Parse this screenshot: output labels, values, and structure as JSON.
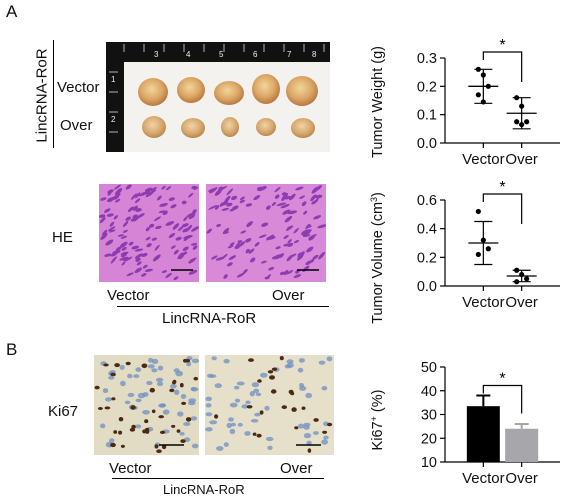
{
  "panels": {
    "a": "A",
    "b": "B"
  },
  "photo": {
    "group_label": "LincRNA-RoR",
    "row_labels": [
      "Vector",
      "Over"
    ],
    "ruler_side": [
      "1",
      "2"
    ],
    "ruler_top": [
      "3",
      "4",
      "5",
      "6",
      "7",
      "8"
    ]
  },
  "he": {
    "label": "HE",
    "x_labels": [
      "Vector",
      "Over"
    ],
    "group_label": "LincRNA-RoR"
  },
  "ki67": {
    "label": "Ki67",
    "x_labels": [
      "Vector",
      "Over"
    ],
    "group_label": "LincRNA-RoR"
  },
  "colors": {
    "he_pink": "#d87ad8",
    "he_nuclei": "#7a2aa6",
    "ki_bg": "#e4ddc6",
    "ki_blue": "#6f8fc0",
    "ki_brown": "#4a2a10",
    "bar_vector": "#000000",
    "bar_over": "#a6a6ab"
  },
  "chart_data": [
    {
      "type": "scatter",
      "ylabel": "Tumor Weight (g)",
      "categories": [
        "Vector",
        "Over"
      ],
      "ylim": [
        0,
        0.3
      ],
      "yticks": [
        "0.0",
        "0.1",
        "0.2",
        "0.3"
      ],
      "points": [
        [
          0.26,
          0.24,
          0.2,
          0.17,
          0.145
        ],
        [
          0.16,
          0.13,
          0.075,
          0.075,
          0.065
        ]
      ],
      "mean": [
        0.2,
        0.105
      ],
      "sd": [
        0.06,
        0.055
      ],
      "significance": "*"
    },
    {
      "type": "scatter",
      "ylabel": "Tumor Volume (cm3)",
      "ylabel_main": "Tumor Volume (cm",
      "ylabel_sup": "3",
      "ylabel_end": ")",
      "categories": [
        "Vector",
        "Over"
      ],
      "ylim": [
        0,
        0.6
      ],
      "yticks": [
        "0.0",
        "0.2",
        "0.4",
        "0.6"
      ],
      "points": [
        [
          0.52,
          0.32,
          0.26,
          0.22
        ],
        [
          0.11,
          0.08,
          0.05,
          0.03
        ]
      ],
      "mean": [
        0.3,
        0.07
      ],
      "sd": [
        0.15,
        0.04
      ],
      "significance": "*"
    },
    {
      "type": "bar",
      "ylabel": "Ki67+ (%)",
      "ylabel_main": "Ki67",
      "ylabel_sup": "+",
      "ylabel_end": " (%)",
      "categories": [
        "Vector",
        "Over"
      ],
      "values": [
        33.5,
        24
      ],
      "error": [
        4.5,
        2
      ],
      "ylim": [
        10,
        50
      ],
      "yticks": [
        "10",
        "20",
        "30",
        "40",
        "50"
      ],
      "significance": "*"
    }
  ]
}
